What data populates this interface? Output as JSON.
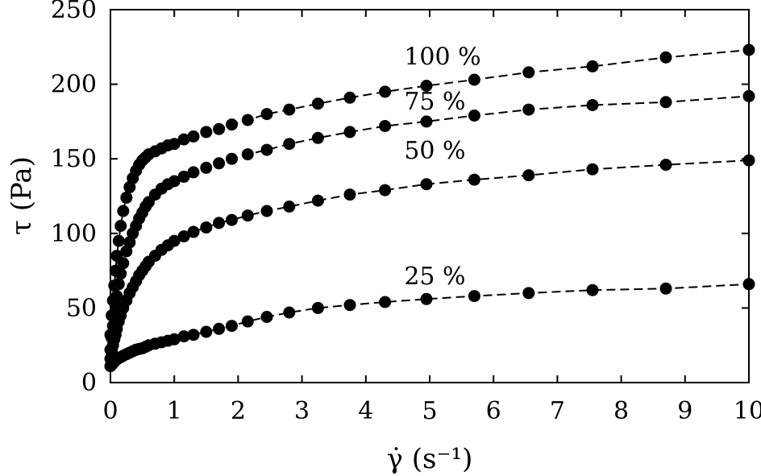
{
  "chart_data": {
    "type": "scatter",
    "title": "",
    "xlabel": "γ̇ (s⁻¹)",
    "ylabel": "τ (Pa)",
    "xlim": [
      0,
      10
    ],
    "ylim": [
      0,
      250
    ],
    "xticks": [
      "0",
      "1",
      "2",
      "3",
      "4",
      "5",
      "6",
      "7",
      "8",
      "9",
      "10"
    ],
    "yticks": [
      "0",
      "50",
      "100",
      "150",
      "200",
      "250"
    ],
    "grid": false,
    "markers": "filled-circle",
    "fit_line_style": "dashed",
    "series": [
      {
        "name": "100 %",
        "x": [
          0.0,
          0.02,
          0.04,
          0.06,
          0.08,
          0.1,
          0.13,
          0.16,
          0.2,
          0.25,
          0.3,
          0.35,
          0.4,
          0.45,
          0.5,
          0.55,
          0.6,
          0.7,
          0.8,
          0.9,
          1.0,
          1.15,
          1.3,
          1.5,
          1.7,
          1.9,
          2.15,
          2.45,
          2.8,
          3.25,
          3.75,
          4.3,
          4.95,
          5.7,
          6.55,
          7.55,
          8.7,
          10.0
        ],
        "y": [
          32,
          45,
          55,
          65,
          75,
          85,
          95,
          105,
          115,
          124,
          131,
          137,
          142,
          146,
          149,
          151,
          153,
          155,
          157,
          159,
          160,
          163,
          165,
          168,
          170,
          173,
          176,
          180,
          183,
          187,
          191,
          195,
          199,
          203,
          208,
          212,
          218,
          223
        ]
      },
      {
        "name": "75 %",
        "x": [
          0.0,
          0.02,
          0.04,
          0.06,
          0.08,
          0.1,
          0.13,
          0.16,
          0.2,
          0.25,
          0.3,
          0.35,
          0.4,
          0.45,
          0.5,
          0.55,
          0.6,
          0.7,
          0.8,
          0.9,
          1.0,
          1.15,
          1.3,
          1.5,
          1.7,
          1.9,
          2.15,
          2.45,
          2.8,
          3.25,
          3.75,
          4.3,
          4.95,
          5.7,
          6.55,
          7.55,
          8.7,
          10.0
        ],
        "y": [
          22,
          30,
          38,
          45,
          52,
          58,
          66,
          73,
          80,
          88,
          94,
          100,
          105,
          110,
          114,
          118,
          121,
          126,
          130,
          133,
          135,
          138,
          141,
          144,
          147,
          150,
          153,
          156,
          160,
          164,
          168,
          172,
          175,
          179,
          183,
          186,
          188,
          192
        ]
      },
      {
        "name": "50 %",
        "x": [
          0.0,
          0.02,
          0.04,
          0.06,
          0.08,
          0.1,
          0.13,
          0.16,
          0.2,
          0.25,
          0.3,
          0.35,
          0.4,
          0.45,
          0.5,
          0.55,
          0.6,
          0.7,
          0.8,
          0.9,
          1.0,
          1.15,
          1.3,
          1.5,
          1.7,
          1.9,
          2.15,
          2.45,
          2.8,
          3.25,
          3.75,
          4.3,
          4.95,
          5.7,
          6.55,
          7.55,
          8.7,
          10.0
        ],
        "y": [
          16,
          21,
          25,
          29,
          32,
          36,
          41,
          45,
          50,
          55,
          60,
          64,
          68,
          72,
          75,
          78,
          81,
          85,
          89,
          92,
          95,
          98,
          101,
          104,
          107,
          109,
          112,
          115,
          118,
          122,
          126,
          129,
          133,
          136,
          139,
          143,
          146,
          149
        ]
      },
      {
        "name": "25 %",
        "x": [
          0.0,
          0.02,
          0.04,
          0.06,
          0.08,
          0.1,
          0.13,
          0.16,
          0.2,
          0.25,
          0.3,
          0.35,
          0.4,
          0.45,
          0.5,
          0.55,
          0.6,
          0.7,
          0.8,
          0.9,
          1.0,
          1.15,
          1.3,
          1.5,
          1.7,
          1.9,
          2.15,
          2.45,
          2.8,
          3.25,
          3.75,
          4.3,
          4.95,
          5.7,
          6.55,
          7.55,
          8.7,
          10.0
        ],
        "y": [
          11,
          12,
          13,
          14,
          15,
          15.5,
          16.5,
          17,
          18,
          19,
          20,
          21,
          22,
          22.5,
          23,
          24,
          25,
          26,
          27,
          28,
          29,
          31,
          32,
          34,
          36,
          38,
          41,
          44,
          47,
          50,
          52,
          54,
          56,
          58,
          60,
          62,
          63,
          66
        ]
      }
    ]
  }
}
